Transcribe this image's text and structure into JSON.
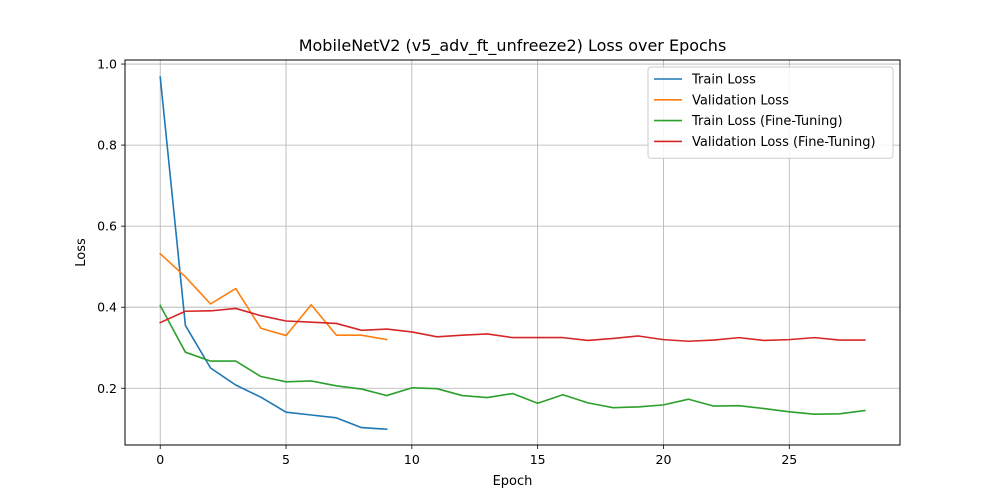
{
  "chart_data": {
    "type": "line",
    "title": "MobileNetV2 (v5_adv_ft_unfreeze2) Loss over Epochs",
    "xlabel": "Epoch",
    "ylabel": "Loss",
    "xlim": [
      -1.4,
      29.4
    ],
    "ylim": [
      0.06,
      1.01
    ],
    "xticks": [
      0,
      5,
      10,
      15,
      20,
      25
    ],
    "yticks": [
      0.2,
      0.4,
      0.6,
      0.8,
      1.0
    ],
    "xtick_labels": [
      "0",
      "5",
      "10",
      "15",
      "20",
      "25"
    ],
    "ytick_labels": [
      "0.2",
      "0.4",
      "0.6",
      "0.8",
      "1.0"
    ],
    "grid": true,
    "legend_position": "top-right",
    "series": [
      {
        "name": "Train Loss",
        "color": "#1f77b4",
        "x": [
          0,
          1,
          2,
          3,
          4,
          5,
          6,
          7,
          8,
          9
        ],
        "y": [
          0.968,
          0.355,
          0.25,
          0.208,
          0.178,
          0.141,
          0.134,
          0.127,
          0.103,
          0.099
        ]
      },
      {
        "name": "Validation Loss",
        "color": "#ff7f0e",
        "x": [
          0,
          1,
          2,
          3,
          4,
          5,
          6,
          7,
          8,
          9
        ],
        "y": [
          0.532,
          0.475,
          0.408,
          0.446,
          0.348,
          0.33,
          0.406,
          0.331,
          0.331,
          0.32
        ]
      },
      {
        "name": "Train Loss (Fine-Tuning)",
        "color": "#2ca02c",
        "x": [
          0,
          1,
          2,
          3,
          4,
          5,
          6,
          7,
          8,
          9,
          10,
          11,
          12,
          13,
          14,
          15,
          16,
          17,
          18,
          19,
          20,
          21,
          22,
          23,
          24,
          25,
          26,
          27,
          28
        ],
        "y": [
          0.404,
          0.289,
          0.267,
          0.267,
          0.229,
          0.216,
          0.218,
          0.206,
          0.198,
          0.182,
          0.201,
          0.199,
          0.182,
          0.177,
          0.187,
          0.163,
          0.184,
          0.164,
          0.152,
          0.154,
          0.159,
          0.173,
          0.156,
          0.157,
          0.15,
          0.142,
          0.136,
          0.137,
          0.145
        ]
      },
      {
        "name": "Validation Loss (Fine-Tuning)",
        "color": "#d62728",
        "x": [
          0,
          1,
          2,
          3,
          4,
          5,
          6,
          7,
          8,
          9,
          10,
          11,
          12,
          13,
          14,
          15,
          16,
          17,
          18,
          19,
          20,
          21,
          22,
          23,
          24,
          25,
          26,
          27,
          28
        ],
        "y": [
          0.362,
          0.39,
          0.391,
          0.397,
          0.379,
          0.366,
          0.363,
          0.36,
          0.343,
          0.346,
          0.339,
          0.327,
          0.331,
          0.334,
          0.325,
          0.325,
          0.325,
          0.318,
          0.323,
          0.329,
          0.32,
          0.316,
          0.319,
          0.325,
          0.318,
          0.32,
          0.325,
          0.319,
          0.319
        ]
      }
    ]
  }
}
